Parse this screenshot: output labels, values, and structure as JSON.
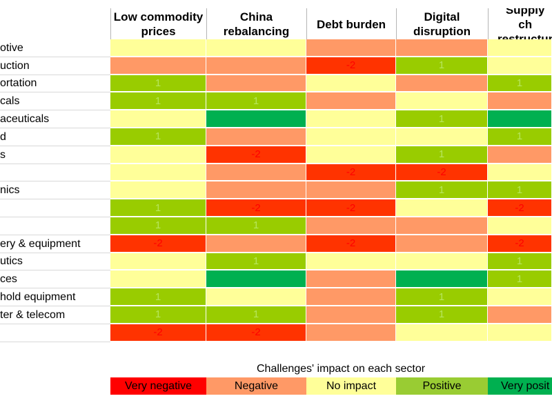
{
  "chart_data": {
    "type": "heatmap",
    "columns": [
      "Low commodity\nprices",
      "China\nrebalancing",
      "Debt burden",
      "Digital\ndisruption",
      "Supply ch\nrestructur"
    ],
    "rows": [
      "otive",
      "uction",
      "ortation",
      "cals",
      "aceuticals",
      "d",
      "s",
      "",
      "nics",
      "",
      "",
      "ery & equipment",
      "utics",
      "ces",
      "hold equipment",
      "ter & telecom",
      ""
    ],
    "values": [
      [
        0,
        0,
        -1,
        -1,
        0
      ],
      [
        -1,
        -1,
        -2,
        1,
        0
      ],
      [
        1,
        -1,
        0,
        -1,
        1
      ],
      [
        1,
        1,
        -1,
        0,
        -1
      ],
      [
        0,
        2,
        0,
        1,
        2
      ],
      [
        1,
        -1,
        0,
        0,
        1
      ],
      [
        0,
        -2,
        0,
        1,
        -1
      ],
      [
        0,
        -1,
        -2,
        -2,
        0
      ],
      [
        0,
        -1,
        -1,
        1,
        1
      ],
      [
        1,
        -2,
        -2,
        0,
        -2
      ],
      [
        1,
        1,
        -1,
        -1,
        0
      ],
      [
        -2,
        -1,
        -2,
        -1,
        -2
      ],
      [
        0,
        1,
        0,
        0,
        1
      ],
      [
        0,
        2,
        -1,
        2,
        1
      ],
      [
        1,
        0,
        -1,
        1,
        0
      ],
      [
        1,
        1,
        -1,
        1,
        -1
      ],
      [
        -2,
        -2,
        -1,
        0,
        0
      ]
    ],
    "labels": [
      [
        "",
        "",
        "",
        "",
        ""
      ],
      [
        "",
        "",
        "-2",
        "1",
        ""
      ],
      [
        "1",
        "",
        "",
        "",
        "1"
      ],
      [
        "1",
        "1",
        "",
        "",
        ""
      ],
      [
        "",
        "",
        "",
        "1",
        ""
      ],
      [
        "1",
        "",
        "",
        "",
        "1"
      ],
      [
        "",
        "-2",
        "",
        "1",
        ""
      ],
      [
        "",
        "",
        "-2",
        "-2",
        ""
      ],
      [
        "",
        "",
        "",
        "1",
        "1"
      ],
      [
        "1",
        "-2",
        "-2",
        "",
        "-2"
      ],
      [
        "1",
        "1",
        "",
        "",
        ""
      ],
      [
        "-2",
        "",
        "-2",
        "",
        "-2"
      ],
      [
        "",
        "1",
        "",
        "",
        "1"
      ],
      [
        "",
        "",
        "",
        "",
        "1"
      ],
      [
        "1",
        "",
        "",
        "1",
        ""
      ],
      [
        "1",
        "1",
        "",
        "1",
        ""
      ],
      [
        "-2",
        "-2",
        "",
        "",
        ""
      ]
    ],
    "colors": {
      "-2": "#ff3300",
      "-1": "#ff9966",
      "0": "#ffff99",
      "1": "#99cc00",
      "2": "#00b050"
    },
    "label_colors": {
      "-2": "#ff0000",
      "1": "#b7e65c"
    }
  },
  "legend": {
    "title": "Challenges' impact on each sector",
    "items": [
      {
        "label": "Very negative",
        "color": "#ff0000"
      },
      {
        "label": "Negative",
        "color": "#ff9966"
      },
      {
        "label": "No impact",
        "color": "#ffff99"
      },
      {
        "label": "Positive",
        "color": "#99cc33"
      },
      {
        "label": "Very posit",
        "color": "#00b050"
      }
    ]
  }
}
